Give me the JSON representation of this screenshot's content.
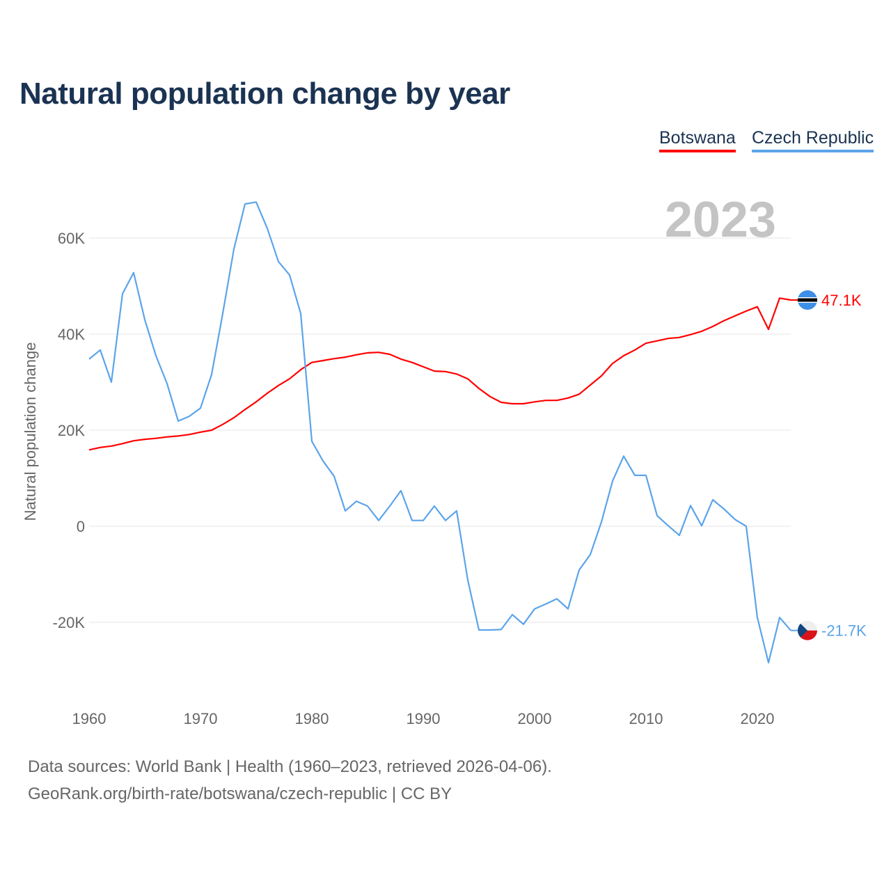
{
  "title": "Natural population change by year",
  "legend": [
    {
      "label": "Botswana",
      "color": "#ff0000"
    },
    {
      "label": "Czech Republic",
      "color": "#5ba4ea"
    }
  ],
  "footer": {
    "line1": "Data sources: World Bank | Health (1960–2023, retrieved 2026-04-06).",
    "line2": "GeoRank.org/birth-rate/botswana/czech-republic | CC BY"
  },
  "chart_data": {
    "type": "line",
    "title": "Natural population change by year",
    "ylabel": "Natural population change",
    "xlabel": "",
    "year_label": "2023",
    "xlim": [
      1960,
      2023
    ],
    "ylim": [
      -30000,
      70000
    ],
    "x_ticks": [
      "1960",
      "1970",
      "1980",
      "1990",
      "2000",
      "2010",
      "2020"
    ],
    "y_ticks": [
      {
        "v": -20000,
        "label": "-20K"
      },
      {
        "v": 0,
        "label": "0"
      },
      {
        "v": 20000,
        "label": "20K"
      },
      {
        "v": 40000,
        "label": "40K"
      },
      {
        "v": 60000,
        "label": "60K"
      }
    ],
    "grid": true,
    "legend_position": "top-right",
    "x_start": 1960,
    "series": [
      {
        "name": "Botswana",
        "color": "#ff0000",
        "end_label": "47.1K",
        "flag": "botswana-flag",
        "values": [
          15.9,
          16.4,
          16.7,
          17.2,
          17.8,
          18.1,
          18.3,
          18.6,
          18.8,
          19.1,
          19.6,
          20.0,
          21.2,
          22.6,
          24.3,
          25.9,
          27.7,
          29.3,
          30.7,
          32.6,
          34.1,
          34.5,
          34.9,
          35.2,
          35.7,
          36.1,
          36.2,
          35.8,
          34.8,
          34.1,
          33.2,
          32.3,
          32.2,
          31.7,
          30.7,
          28.7,
          27.0,
          25.8,
          25.5,
          25.5,
          25.9,
          26.2,
          26.2,
          26.7,
          27.5,
          29.4,
          31.3,
          33.9,
          35.5,
          36.7,
          38.1,
          38.6,
          39.1,
          39.3,
          39.9,
          40.6,
          41.6,
          42.8,
          43.8,
          44.8,
          45.7,
          41.0,
          47.5,
          47.1
        ]
      },
      {
        "name": "Czech Republic",
        "color": "#5ba4ea",
        "end_label": "-21.7K",
        "flag": "czech-flag",
        "values": [
          34.8,
          36.7,
          30.0,
          48.4,
          52.8,
          43.0,
          35.5,
          29.7,
          21.9,
          22.9,
          24.6,
          31.6,
          44.3,
          57.7,
          67.1,
          67.5,
          62.0,
          55.1,
          52.3,
          44.3,
          17.7,
          13.6,
          10.4,
          3.2,
          5.2,
          4.2,
          1.2,
          4.2,
          7.4,
          1.2,
          1.2,
          4.2,
          1.2,
          3.2,
          -11.2,
          -21.6,
          -21.6,
          -21.5,
          -18.4,
          -20.4,
          -17.2,
          -16.2,
          -15.1,
          -17.2,
          -9.1,
          -5.9,
          0.9,
          9.4,
          14.6,
          10.6,
          10.6,
          2.2,
          0.1,
          -1.9,
          4.3,
          0.1,
          5.5,
          3.6,
          1.4,
          0.0,
          -19.0,
          -28.4,
          -19.0,
          -21.7
        ]
      }
    ],
    "value_unit": "thousands"
  }
}
